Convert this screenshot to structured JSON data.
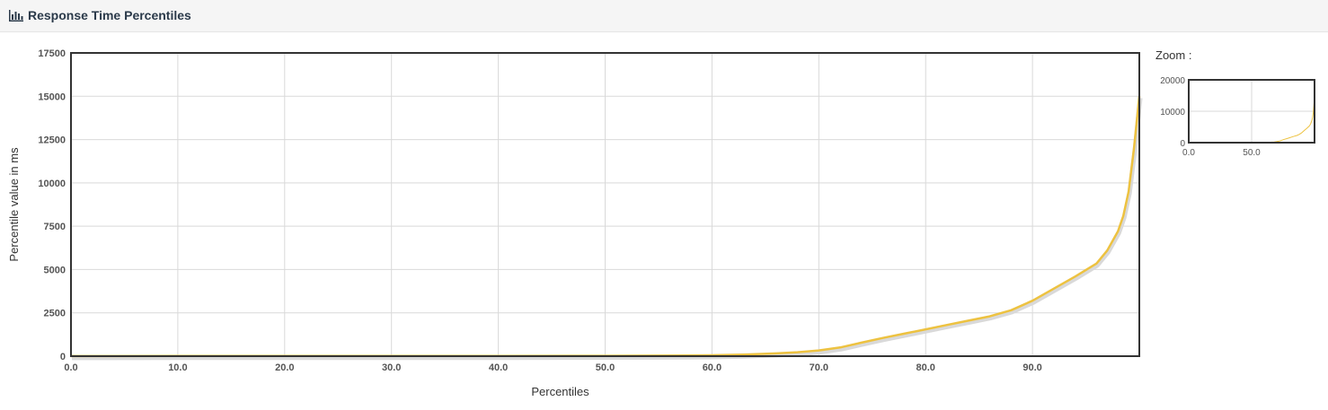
{
  "panel": {
    "title": "Response Time Percentiles",
    "icon": "bar-chart-icon"
  },
  "colors": {
    "series": "#edc240",
    "series_shadow": "#d9d9d9",
    "grid": "#d9d9d9",
    "border": "#333333",
    "heading_bg": "#f5f5f5"
  },
  "chart_data": {
    "type": "line",
    "title": "",
    "xlabel": "Percentiles",
    "ylabel": "Percentile value in ms",
    "xlim": [
      0,
      100
    ],
    "ylim": [
      0,
      17500
    ],
    "x_ticks": [
      "0.0",
      "10.0",
      "20.0",
      "30.0",
      "40.0",
      "50.0",
      "60.0",
      "70.0",
      "80.0",
      "90.0"
    ],
    "y_ticks": [
      "0",
      "2500",
      "5000",
      "7500",
      "10000",
      "12500",
      "15000",
      "17500"
    ],
    "grid": true,
    "legend": "none",
    "series": [
      {
        "x": [
          0,
          10,
          20,
          30,
          40,
          50,
          55,
          60,
          63,
          66,
          68,
          70,
          72,
          74,
          76,
          78,
          80,
          82,
          84,
          86,
          88,
          90,
          92,
          94,
          96,
          97,
          98,
          98.5,
          99,
          99.5,
          100
        ],
        "y": [
          5,
          8,
          10,
          12,
          15,
          20,
          30,
          50,
          90,
          160,
          230,
          330,
          500,
          780,
          1050,
          1300,
          1550,
          1800,
          2050,
          2300,
          2650,
          3200,
          3900,
          4600,
          5350,
          6100,
          7200,
          8100,
          9500,
          12000,
          15000
        ]
      }
    ]
  },
  "zoom": {
    "label": "Zoom :",
    "x_ticks": [
      "0.0",
      "50.0"
    ],
    "y_ticks": [
      "0",
      "10000",
      "20000"
    ],
    "xlim": [
      0,
      100
    ],
    "ylim": [
      0,
      20000
    ]
  }
}
